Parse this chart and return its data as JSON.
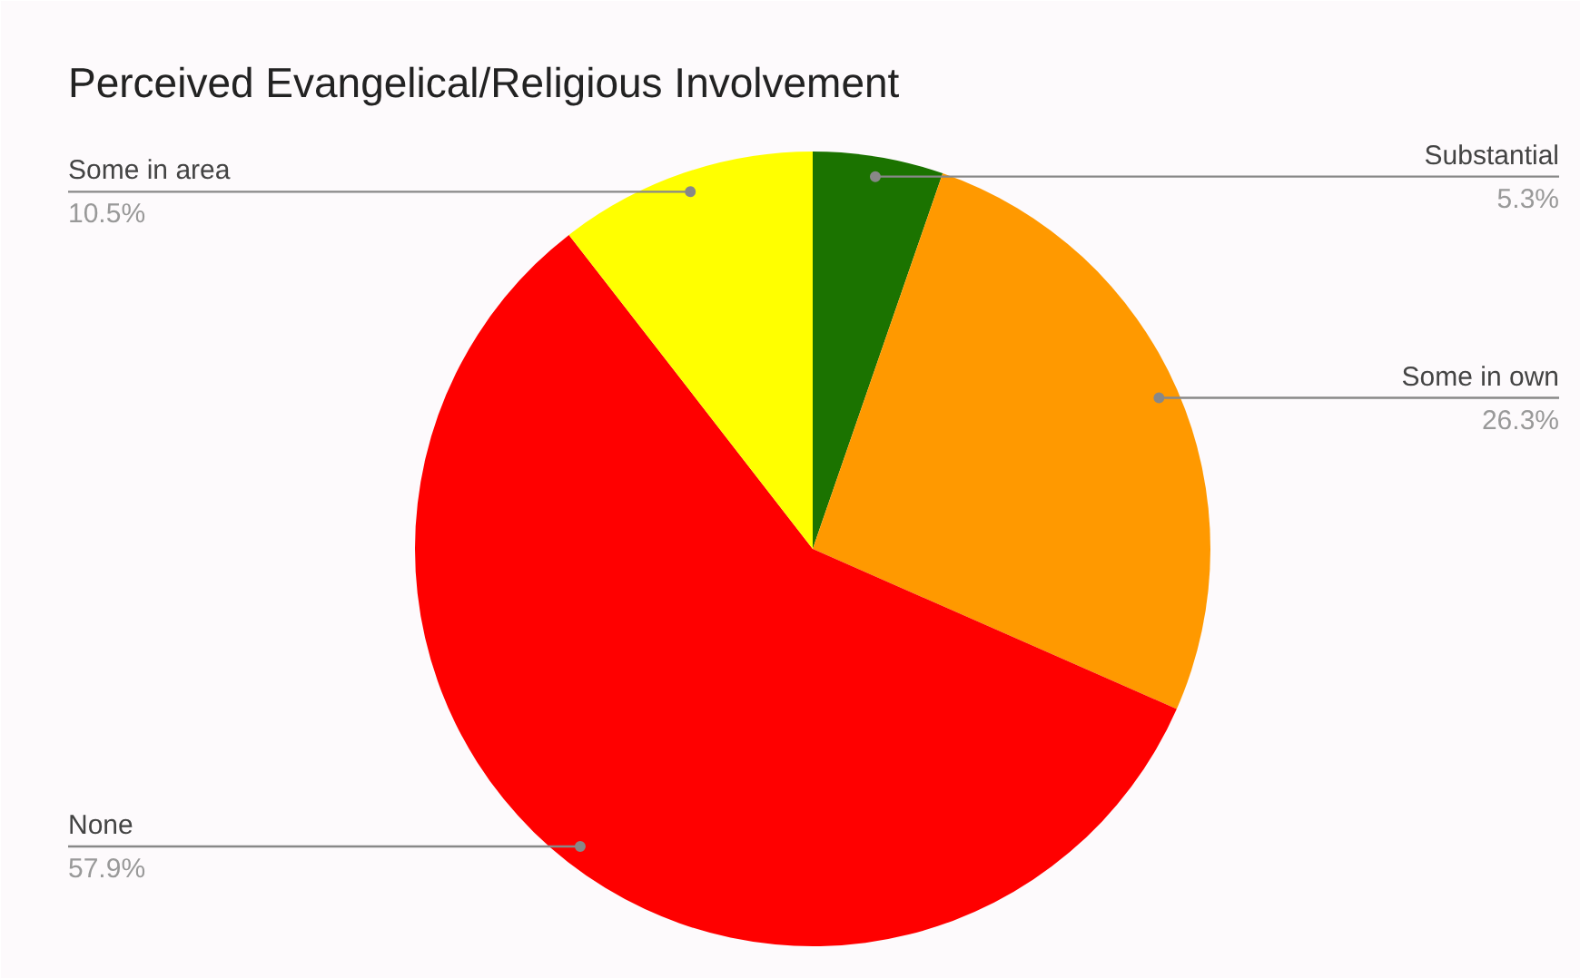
{
  "chart_data": {
    "type": "pie",
    "title": "Perceived Evangelical/Religious Involvement",
    "categories": [
      "Substantial",
      "Some in own",
      "None",
      "Some in area"
    ],
    "values": [
      5.3,
      26.3,
      57.9,
      10.5
    ],
    "colors": [
      "#1b7300",
      "#ff9900",
      "#ff0000",
      "#ffff00"
    ],
    "value_labels": [
      "5.3%",
      "26.3%",
      "57.9%",
      "10.5%"
    ]
  }
}
